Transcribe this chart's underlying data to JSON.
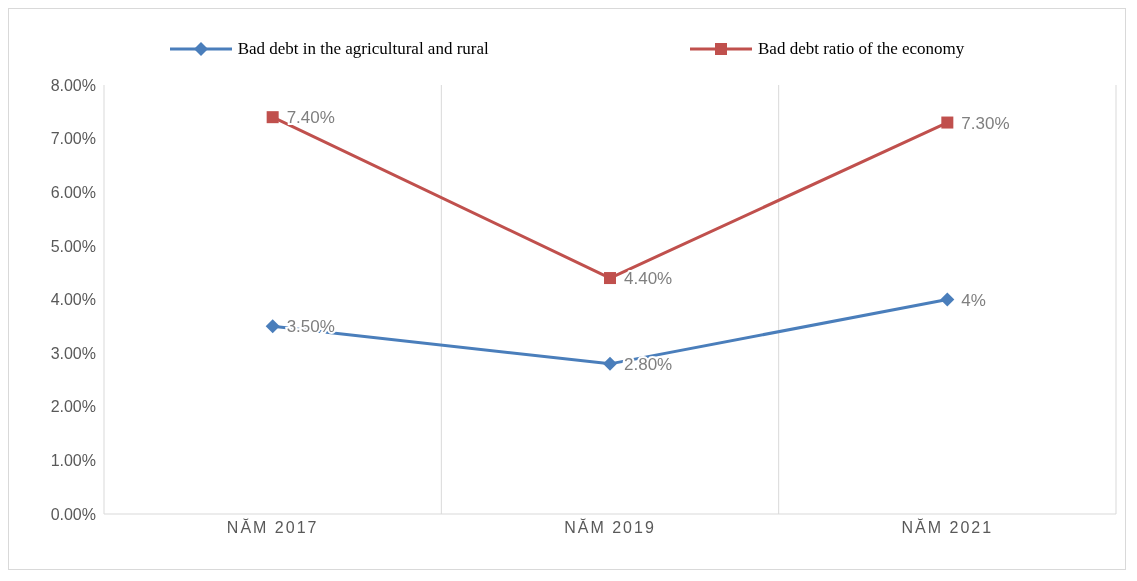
{
  "chart_data": {
    "type": "line",
    "categories": [
      "NĂM 2017",
      "NĂM 2019",
      "NĂM 2021"
    ],
    "series": [
      {
        "name": "Bad debt in the agricultural and rural",
        "color": "#4a7ebb",
        "marker": "diamond",
        "values": [
          3.5,
          2.8,
          4
        ],
        "value_labels": [
          "3.50%",
          "2.80%",
          "4%"
        ]
      },
      {
        "name": "Bad debt ratio of the economy",
        "color": "#c0504d",
        "marker": "square",
        "values": [
          7.4,
          4.4,
          7.3
        ],
        "value_labels": [
          "7.40%",
          "4.40%",
          "7.30%"
        ]
      }
    ],
    "ylim": [
      0,
      8
    ],
    "yticks": [
      {
        "value": 0,
        "label": "0.00%"
      },
      {
        "value": 1,
        "label": "1.00%"
      },
      {
        "value": 2,
        "label": "2.00%"
      },
      {
        "value": 3,
        "label": "3.00%"
      },
      {
        "value": 4,
        "label": "4.00%"
      },
      {
        "value": 5,
        "label": "5.00%"
      },
      {
        "value": 6,
        "label": "6.00%"
      },
      {
        "value": 7,
        "label": "7.00%"
      },
      {
        "value": 8,
        "label": "8.00%"
      }
    ],
    "grid": "x",
    "legend": "top",
    "line_style": "solid"
  }
}
